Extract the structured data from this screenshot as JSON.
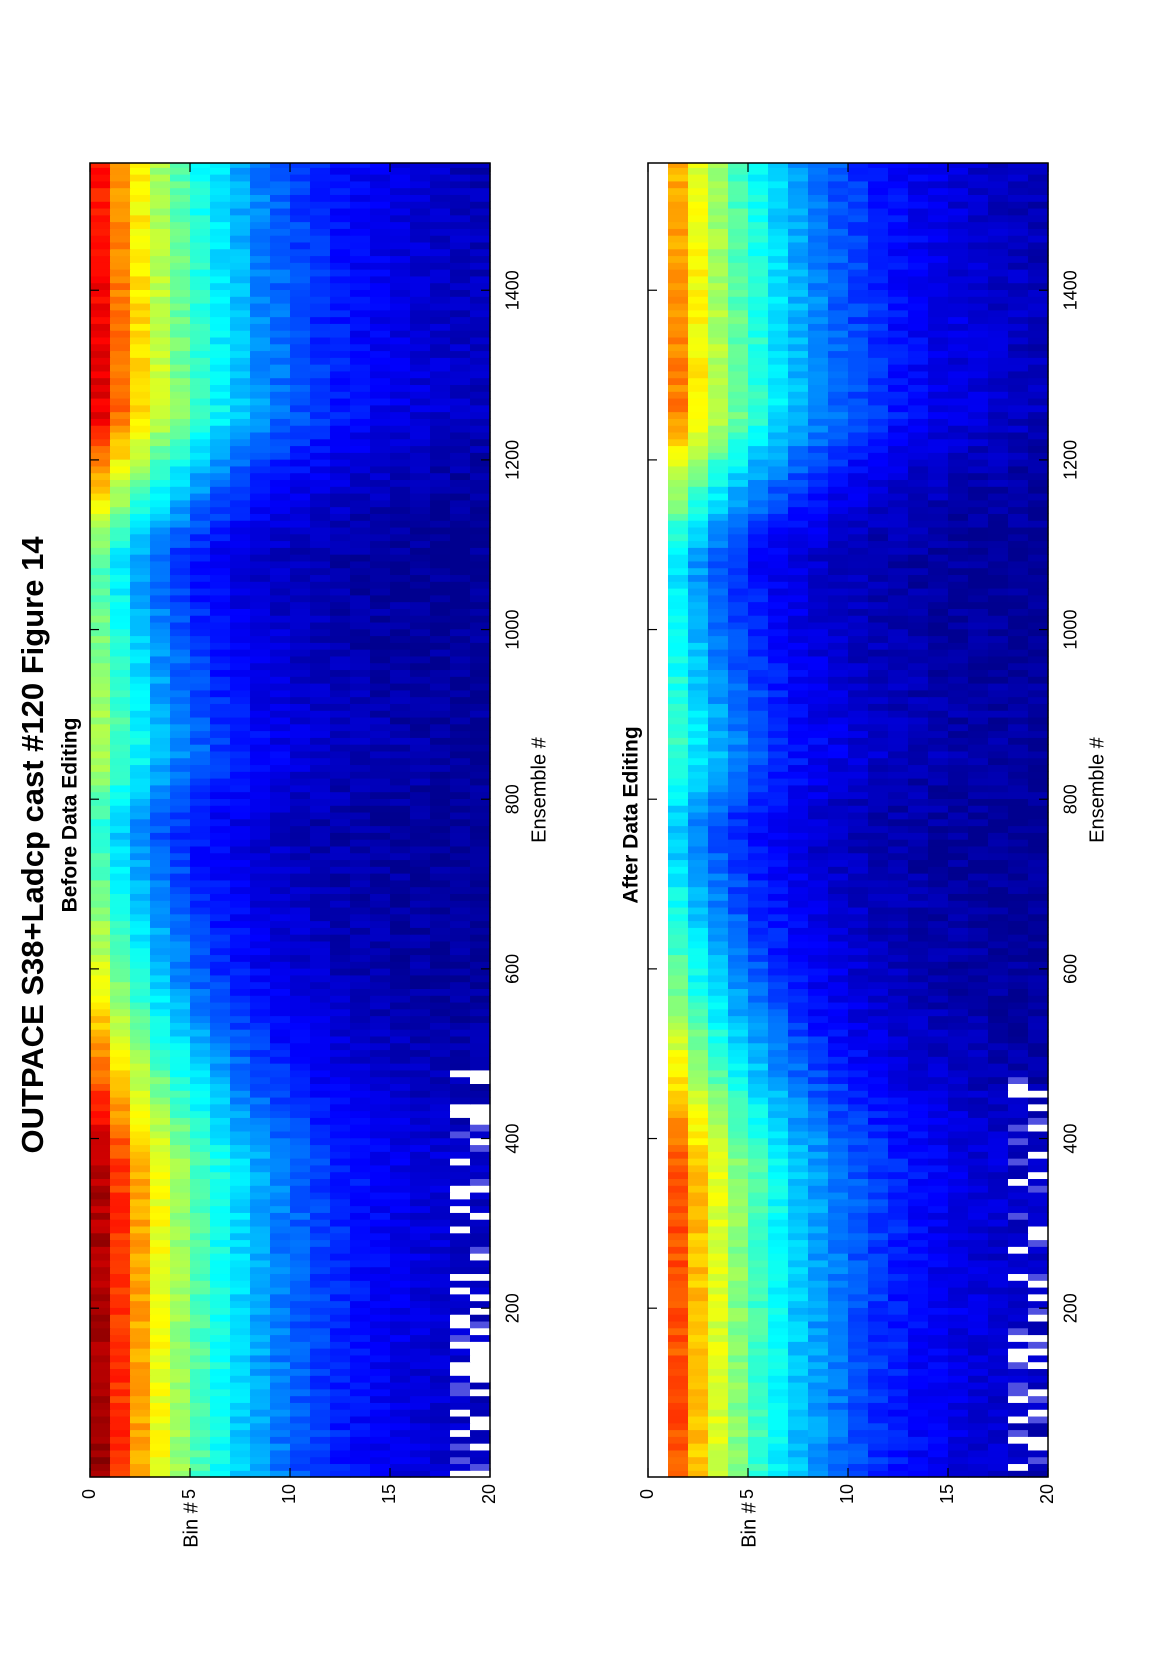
{
  "figure": {
    "title": "OUTPACE S38+Ladcp cast #120  Figure 14"
  },
  "colormap": [
    "#00008f",
    "#0000ff",
    "#0080ff",
    "#00ffff",
    "#80ff80",
    "#ffff00",
    "#ff8000",
    "#ff0000",
    "#800000"
  ],
  "chart_data": [
    {
      "type": "heatmap",
      "title": "Before Data Editing",
      "xlabel": "Ensemble #",
      "ylabel": "Bin #",
      "xlim": [
        1,
        1550
      ],
      "ylim": [
        0,
        20
      ],
      "xticks": [
        200,
        400,
        600,
        800,
        1000,
        1200,
        1400
      ],
      "yticks": [
        0,
        5,
        10,
        15,
        20
      ],
      "grid": false,
      "edited": false,
      "profile_points": [
        1,
        370,
        580,
        760,
        850,
        1080,
        1250,
        1550
      ],
      "surface_level": [
        0.97,
        0.95,
        0.6,
        0.4,
        0.55,
        0.45,
        0.9,
        0.85
      ],
      "decay_bins": [
        6.5,
        6.8,
        5.0,
        4.6,
        5.5,
        4.2,
        6.8,
        6.5
      ],
      "first_valid_bin": 0.5
    },
    {
      "type": "heatmap",
      "title": "After Data Editing",
      "xlabel": "Ensemble #",
      "ylabel": "Bin #",
      "xlim": [
        1,
        1550
      ],
      "ylim": [
        0,
        20
      ],
      "xticks": [
        200,
        400,
        600,
        800,
        1000,
        1200,
        1400
      ],
      "yticks": [
        0,
        5,
        10,
        15,
        20
      ],
      "grid": false,
      "edited": true,
      "profile_points": [
        1,
        370,
        580,
        760,
        850,
        1080,
        1250,
        1550
      ],
      "surface_level": [
        0.93,
        0.92,
        0.58,
        0.38,
        0.52,
        0.43,
        0.87,
        0.82
      ],
      "decay_bins": [
        6.5,
        6.8,
        5.0,
        4.6,
        5.5,
        4.2,
        6.8,
        6.5
      ],
      "first_valid_bin": 1.5
    }
  ]
}
